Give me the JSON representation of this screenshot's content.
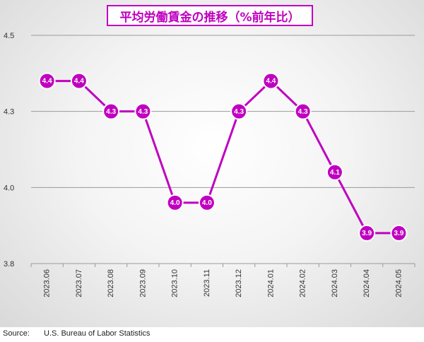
{
  "title": "平均労働賃金の推移（%前年比）",
  "source": {
    "label": "Source:",
    "text": "U.S. Bureau of Labor Statistics"
  },
  "colors": {
    "series": "#c000c0",
    "title": "#c000c0",
    "grid": "#9a9a9a"
  },
  "chart_data": {
    "type": "line",
    "title": "平均労働賃金の推移（%前年比）",
    "xlabel": "",
    "ylabel": "",
    "ylim": [
      3.8,
      4.5
    ],
    "yticks": [
      {
        "value": 3.8,
        "label": "3.8"
      },
      {
        "value": 4.05,
        "label": "4.0"
      },
      {
        "value": 4.3,
        "label": "4.3"
      },
      {
        "value": 4.55,
        "label": "4.5"
      }
    ],
    "categories": [
      "2023.06",
      "2023.07",
      "2023.08",
      "2023.09",
      "2023.10",
      "2023.11",
      "2023.12",
      "2024.01",
      "2024.02",
      "2024.03",
      "2024.04",
      "2024.05"
    ],
    "series": [
      {
        "values": [
          4.4,
          4.4,
          4.3,
          4.3,
          4.0,
          4.0,
          4.3,
          4.4,
          4.3,
          4.1,
          3.9,
          3.9
        ],
        "labels": [
          "4.4",
          "4.4",
          "4.3",
          "4.3",
          "4.0",
          "4.0",
          "4.3",
          "4.4",
          "4.3",
          "4.1",
          "3.9",
          "3.9"
        ]
      }
    ],
    "grid": true,
    "legend": "none"
  }
}
